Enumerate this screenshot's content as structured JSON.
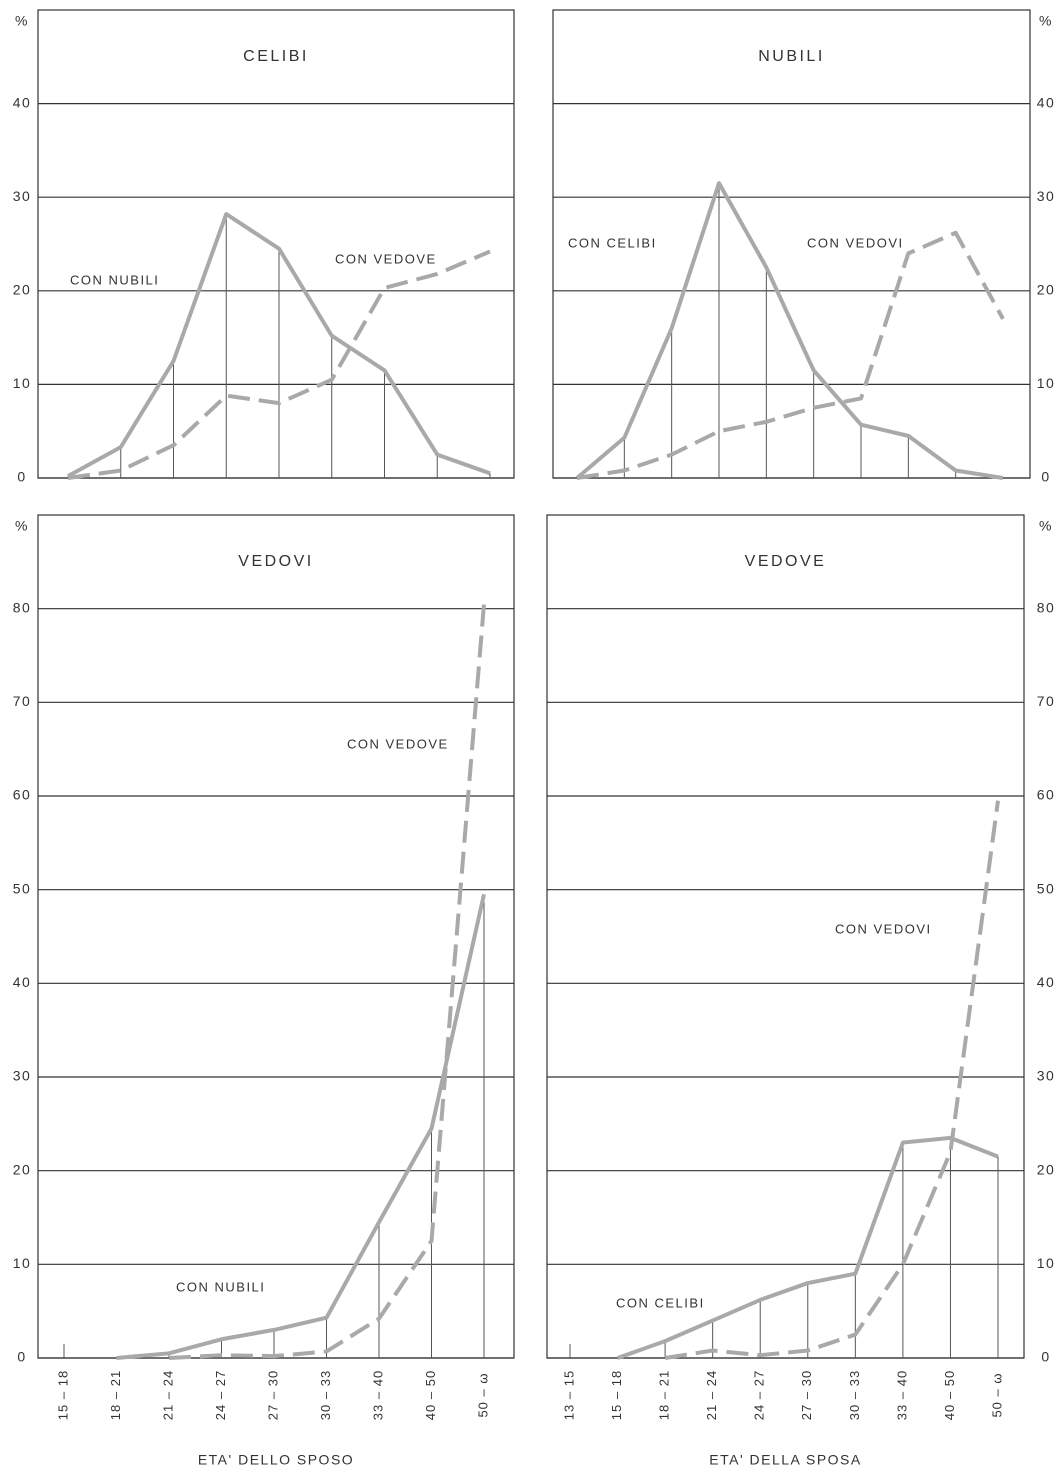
{
  "chart_data": [
    {
      "type": "line",
      "title": "CELIBI",
      "y_label": "%",
      "categories": [
        null,
        null,
        null,
        null,
        null,
        null,
        null,
        null,
        null
      ],
      "ylim": [
        0,
        50
      ],
      "yticks": [
        0,
        10,
        20,
        30,
        40
      ],
      "grid": true,
      "series": [
        {
          "name": "CON NUBILI",
          "color": "#a9a9a9",
          "line_style": "solid",
          "values": [
            0.2,
            3.3,
            12.5,
            28.2,
            24.5,
            15.2,
            11.5,
            2.5,
            0.5
          ]
        },
        {
          "name": "CON VEDOVE",
          "color": "#a9a9a9",
          "line_style": "dashed",
          "values": [
            0,
            0.8,
            3.5,
            8.8,
            8,
            10.5,
            20.3,
            21.8,
            24.2
          ]
        }
      ]
    },
    {
      "type": "line",
      "title": "NUBILI",
      "y_label": "%",
      "categories": [
        null,
        null,
        null,
        null,
        null,
        null,
        null,
        null,
        null,
        null
      ],
      "ylim": [
        0,
        50
      ],
      "yticks": [
        0,
        10,
        20,
        30,
        40
      ],
      "grid": true,
      "series": [
        {
          "name": "CON CELIBI",
          "color": "#a9a9a9",
          "line_style": "solid",
          "values": [
            0,
            4.3,
            16,
            31.5,
            22.5,
            11.5,
            5.7,
            4.5,
            0.8,
            0
          ]
        },
        {
          "name": "CON VEDOVI",
          "color": "#a9a9a9",
          "line_style": "dashed",
          "values": [
            0,
            0.8,
            2.5,
            5,
            6,
            7.5,
            8.5,
            24,
            26.2,
            17
          ]
        }
      ]
    },
    {
      "type": "line",
      "title": "VEDOVI",
      "y_label": "%",
      "x_label": "ETA' DELLO SPOSO",
      "categories": [
        "15 – 18",
        "18 – 21",
        "21 – 24",
        "24 – 27",
        "27 – 30",
        "30 – 33",
        "33 – 40",
        "40 – 50",
        "50 – ω"
      ],
      "ylim": [
        0,
        90
      ],
      "yticks": [
        0,
        10,
        20,
        30,
        40,
        50,
        60,
        70,
        80
      ],
      "grid": true,
      "series": [
        {
          "name": "CON NUBILI",
          "color": "#a9a9a9",
          "line_style": "solid",
          "values": [
            null,
            0,
            0.5,
            2,
            3,
            4.3,
            14.5,
            24.5,
            49.5
          ]
        },
        {
          "name": "CON VEDOVE",
          "color": "#a9a9a9",
          "line_style": "dashed",
          "values": [
            null,
            null,
            0,
            0.3,
            0.2,
            0.7,
            4.2,
            12.5,
            80.5
          ]
        }
      ]
    },
    {
      "type": "line",
      "title": "VEDOVE",
      "y_label": "%",
      "x_label": "ETA' DELLA SPOSA",
      "categories": [
        "13 – 15",
        "15 – 18",
        "18 – 21",
        "21 – 24",
        "24 – 27",
        "27 – 30",
        "30 – 33",
        "33 – 40",
        "40 – 50",
        "50 – ω"
      ],
      "ylim": [
        0,
        90
      ],
      "yticks": [
        0,
        10,
        20,
        30,
        40,
        50,
        60,
        70,
        80
      ],
      "grid": true,
      "series": [
        {
          "name": "CON CELIBI",
          "color": "#a9a9a9",
          "line_style": "solid",
          "values": [
            null,
            0,
            1.8,
            4,
            6.2,
            8,
            9,
            23,
            23.5,
            21.5
          ]
        },
        {
          "name": "CON VEDOVI",
          "color": "#a9a9a9",
          "line_style": "dashed",
          "values": [
            null,
            null,
            0,
            0.8,
            0.3,
            0.8,
            2.5,
            10,
            22,
            59.5
          ]
        }
      ]
    }
  ]
}
